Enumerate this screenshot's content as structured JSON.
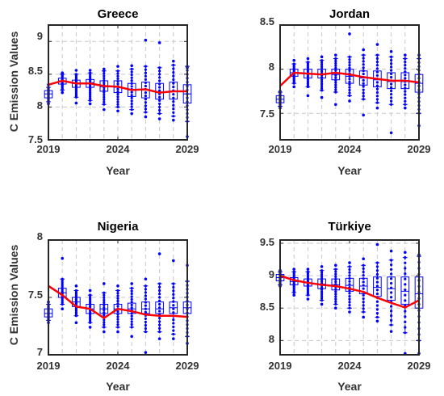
{
  "colors": {
    "frame": "#262626",
    "grid": "#c8c8c8",
    "box": "#0000ff",
    "outlier": "#0000ff",
    "mean_line": "#ff0000",
    "text": "#333333"
  },
  "chart_data": [
    {
      "type": "box",
      "title": "Greece",
      "xlabel": "Year",
      "ylabel": "C Emission Values",
      "x": [
        2019,
        2020,
        2021,
        2022,
        2023,
        2024,
        2025,
        2026,
        2027,
        2028,
        2029
      ],
      "xlim": [
        2019,
        2029
      ],
      "ylim": [
        7.5,
        9.25
      ],
      "xticks": [
        2019,
        2024,
        2029
      ],
      "yticks": [
        7.5,
        8,
        8.5,
        9
      ],
      "xtick_labels": [
        "2019",
        "2024",
        "2029"
      ],
      "ytick_labels": [
        "7.5",
        "8",
        "8.5",
        "9"
      ],
      "grid": true,
      "boxes": [
        {
          "q1": 8.14,
          "median": 8.2,
          "q3": 8.25,
          "whisker_low": 8.08,
          "whisker_high": 8.3,
          "outlier_low": 8.05,
          "outlier_high": 8.34
        },
        {
          "q1": 8.35,
          "median": 8.4,
          "q3": 8.44,
          "whisker_low": 8.26,
          "whisker_high": 8.5,
          "outlier_low": 8.22,
          "outlier_high": 8.52
        },
        {
          "q1": 8.3,
          "median": 8.36,
          "q3": 8.41,
          "whisker_low": 8.15,
          "whisker_high": 8.5,
          "outlier_low": 8.06,
          "outlier_high": 8.56
        },
        {
          "q1": 8.3,
          "median": 8.37,
          "q3": 8.42,
          "whisker_low": 8.1,
          "whisker_high": 8.52,
          "outlier_low": 8.05,
          "outlier_high": 8.56
        },
        {
          "q1": 8.24,
          "median": 8.31,
          "q3": 8.4,
          "whisker_low": 8.04,
          "whisker_high": 8.55,
          "outlier_low": 7.96,
          "outlier_high": 8.58
        },
        {
          "q1": 8.22,
          "median": 8.3,
          "q3": 8.4,
          "whisker_low": 8.0,
          "whisker_high": 8.55,
          "outlier_low": 7.94,
          "outlier_high": 8.62
        },
        {
          "q1": 8.16,
          "median": 8.26,
          "q3": 8.36,
          "whisker_low": 7.96,
          "whisker_high": 8.58,
          "outlier_low": 7.9,
          "outlier_high": 8.63
        },
        {
          "q1": 8.14,
          "median": 8.26,
          "q3": 8.38,
          "whisker_low": 7.92,
          "whisker_high": 8.62,
          "outlier_low": 7.85,
          "outlier_high": 9.02
        },
        {
          "q1": 8.12,
          "median": 8.22,
          "q3": 8.36,
          "whisker_low": 7.9,
          "whisker_high": 8.6,
          "outlier_low": 7.82,
          "outlier_high": 8.98
        },
        {
          "q1": 8.12,
          "median": 8.24,
          "q3": 8.38,
          "whisker_low": 7.86,
          "whisker_high": 8.64,
          "outlier_low": 7.8,
          "outlier_high": 8.7
        },
        {
          "q1": 8.06,
          "median": 8.2,
          "q3": 8.34,
          "whisker_low": 7.78,
          "whisker_high": 8.62,
          "outlier_low": 7.55,
          "outlier_high": 8.6
        }
      ],
      "mean_line": [
        8.34,
        8.4,
        8.36,
        8.36,
        8.32,
        8.31,
        8.26,
        8.27,
        8.22,
        8.24,
        8.24
      ]
    },
    {
      "type": "box",
      "title": "Jordan",
      "xlabel": "Year",
      "ylabel": "",
      "x": [
        2019,
        2020,
        2021,
        2022,
        2023,
        2024,
        2025,
        2026,
        2027,
        2028,
        2029
      ],
      "xlim": [
        2019,
        2029
      ],
      "ylim": [
        7.2,
        8.5
      ],
      "xticks": [
        2019,
        2024,
        2029
      ],
      "yticks": [
        7.5,
        8,
        8.5
      ],
      "xtick_labels": [
        "2019",
        "2024",
        "2029"
      ],
      "ytick_labels": [
        "7.5",
        "8",
        "8.5"
      ],
      "grid": true,
      "boxes": [
        {
          "q1": 7.62,
          "median": 7.66,
          "q3": 7.7,
          "whisker_low": 7.58,
          "whisker_high": 7.74,
          "outlier_low": 7.56,
          "outlier_high": 7.75
        },
        {
          "q1": 7.92,
          "median": 7.96,
          "q3": 8.0,
          "whisker_low": 7.84,
          "whisker_high": 8.06,
          "outlier_low": 7.8,
          "outlier_high": 8.1
        },
        {
          "q1": 7.9,
          "median": 7.95,
          "q3": 8.0,
          "whisker_low": 7.8,
          "whisker_high": 8.08,
          "outlier_low": 7.7,
          "outlier_high": 8.12
        },
        {
          "q1": 7.9,
          "median": 7.94,
          "q3": 8.0,
          "whisker_low": 7.76,
          "whisker_high": 8.1,
          "outlier_low": 7.68,
          "outlier_high": 8.14
        },
        {
          "q1": 7.88,
          "median": 7.94,
          "q3": 8.0,
          "whisker_low": 7.74,
          "whisker_high": 8.12,
          "outlier_low": 7.6,
          "outlier_high": 8.16
        },
        {
          "q1": 7.84,
          "median": 7.92,
          "q3": 8.0,
          "whisker_low": 7.7,
          "whisker_high": 8.14,
          "outlier_low": 7.64,
          "outlier_high": 8.4
        },
        {
          "q1": 7.82,
          "median": 7.9,
          "q3": 7.98,
          "whisker_low": 7.66,
          "whisker_high": 8.16,
          "outlier_low": 7.48,
          "outlier_high": 8.22
        },
        {
          "q1": 7.8,
          "median": 7.88,
          "q3": 7.98,
          "whisker_low": 7.62,
          "whisker_high": 8.16,
          "outlier_low": 7.56,
          "outlier_high": 8.28
        },
        {
          "q1": 7.78,
          "median": 7.86,
          "q3": 7.96,
          "whisker_low": 7.6,
          "whisker_high": 8.14,
          "outlier_low": 7.28,
          "outlier_high": 8.2
        },
        {
          "q1": 7.78,
          "median": 7.86,
          "q3": 7.96,
          "whisker_low": 7.6,
          "whisker_high": 8.12,
          "outlier_low": 7.56,
          "outlier_high": 8.16
        },
        {
          "q1": 7.74,
          "median": 7.84,
          "q3": 7.94,
          "whisker_low": 7.5,
          "whisker_high": 8.12,
          "outlier_low": 7.36,
          "outlier_high": 8.16
        }
      ],
      "mean_line": [
        7.81,
        7.96,
        7.95,
        7.94,
        7.96,
        7.94,
        7.91,
        7.89,
        7.87,
        7.87,
        7.85
      ]
    },
    {
      "type": "box",
      "title": "Nigeria",
      "xlabel": "Year",
      "ylabel": "C Emission Values",
      "x": [
        2019,
        2020,
        2021,
        2022,
        2023,
        2024,
        2025,
        2026,
        2027,
        2028,
        2029
      ],
      "xlim": [
        2019,
        2029
      ],
      "ylim": [
        7.0,
        8.0
      ],
      "xticks": [
        2019,
        2024,
        2029
      ],
      "yticks": [
        7,
        7.5,
        8
      ],
      "xtick_labels": [
        "2019",
        "2024",
        "2029"
      ],
      "ytick_labels": [
        "7",
        "7.5",
        "8"
      ],
      "grid": true,
      "boxes": [
        {
          "q1": 7.33,
          "median": 7.36,
          "q3": 7.4,
          "whisker_low": 7.3,
          "whisker_high": 7.44,
          "outlier_low": 7.28,
          "outlier_high": 7.46
        },
        {
          "q1": 7.5,
          "median": 7.54,
          "q3": 7.58,
          "whisker_low": 7.44,
          "whisker_high": 7.66,
          "outlier_low": 7.4,
          "outlier_high": 7.84
        },
        {
          "q1": 7.42,
          "median": 7.46,
          "q3": 7.5,
          "whisker_low": 7.34,
          "whisker_high": 7.56,
          "outlier_low": 7.28,
          "outlier_high": 7.6
        },
        {
          "q1": 7.36,
          "median": 7.4,
          "q3": 7.44,
          "whisker_low": 7.28,
          "whisker_high": 7.52,
          "outlier_low": 7.24,
          "outlier_high": 7.56
        },
        {
          "q1": 7.36,
          "median": 7.4,
          "q3": 7.44,
          "whisker_low": 7.24,
          "whisker_high": 7.54,
          "outlier_low": 7.2,
          "outlier_high": 7.62
        },
        {
          "q1": 7.36,
          "median": 7.4,
          "q3": 7.44,
          "whisker_low": 7.24,
          "whisker_high": 7.56,
          "outlier_low": 7.2,
          "outlier_high": 7.6
        },
        {
          "q1": 7.36,
          "median": 7.4,
          "q3": 7.45,
          "whisker_low": 7.24,
          "whisker_high": 7.58,
          "outlier_low": 7.16,
          "outlier_high": 7.62
        },
        {
          "q1": 7.36,
          "median": 7.4,
          "q3": 7.46,
          "whisker_low": 7.2,
          "whisker_high": 7.6,
          "outlier_low": 7.02,
          "outlier_high": 7.66
        },
        {
          "q1": 7.36,
          "median": 7.4,
          "q3": 7.46,
          "whisker_low": 7.2,
          "whisker_high": 7.62,
          "outlier_low": 7.14,
          "outlier_high": 7.88
        },
        {
          "q1": 7.36,
          "median": 7.41,
          "q3": 7.46,
          "whisker_low": 7.18,
          "whisker_high": 7.62,
          "outlier_low": 7.14,
          "outlier_high": 7.82
        },
        {
          "q1": 7.36,
          "median": 7.41,
          "q3": 7.46,
          "whisker_low": 7.16,
          "whisker_high": 7.64,
          "outlier_low": 7.1,
          "outlier_high": 7.78
        }
      ],
      "mean_line": [
        7.6,
        7.52,
        7.42,
        7.4,
        7.32,
        7.4,
        7.38,
        7.35,
        7.34,
        7.34,
        7.33
      ]
    },
    {
      "type": "box",
      "title": "Türkiye",
      "xlabel": "Year",
      "ylabel": "",
      "x": [
        2019,
        2020,
        2021,
        2022,
        2023,
        2024,
        2025,
        2026,
        2027,
        2028,
        2029
      ],
      "xlim": [
        2019,
        2029
      ],
      "ylim": [
        7.78,
        9.55
      ],
      "xticks": [
        2019,
        2024,
        2029
      ],
      "yticks": [
        8,
        8.5,
        9,
        9.5
      ],
      "xtick_labels": [
        "2019",
        "2024",
        "2029"
      ],
      "ytick_labels": [
        "8",
        "8.5",
        "9",
        "9.5"
      ],
      "grid": true,
      "boxes": [
        {
          "q1": 8.92,
          "median": 8.97,
          "q3": 9.02,
          "whisker_low": 8.86,
          "whisker_high": 9.06,
          "outlier_low": 8.84,
          "outlier_high": 9.08
        },
        {
          "q1": 8.86,
          "median": 8.91,
          "q3": 8.97,
          "whisker_low": 8.74,
          "whisker_high": 9.06,
          "outlier_low": 8.7,
          "outlier_high": 9.1
        },
        {
          "q1": 8.84,
          "median": 8.89,
          "q3": 8.95,
          "whisker_low": 8.7,
          "whisker_high": 9.06,
          "outlier_low": 8.64,
          "outlier_high": 9.1
        },
        {
          "q1": 8.8,
          "median": 8.87,
          "q3": 8.95,
          "whisker_low": 8.62,
          "whisker_high": 9.08,
          "outlier_low": 8.56,
          "outlier_high": 9.14
        },
        {
          "q1": 8.78,
          "median": 8.86,
          "q3": 8.95,
          "whisker_low": 8.56,
          "whisker_high": 9.1,
          "outlier_low": 8.5,
          "outlier_high": 9.16
        },
        {
          "q1": 8.76,
          "median": 8.85,
          "q3": 8.96,
          "whisker_low": 8.5,
          "whisker_high": 9.14,
          "outlier_low": 8.44,
          "outlier_high": 9.2
        },
        {
          "q1": 8.72,
          "median": 8.84,
          "q3": 8.96,
          "whisker_low": 8.44,
          "whisker_high": 9.16,
          "outlier_low": 8.36,
          "outlier_high": 9.26
        },
        {
          "q1": 8.68,
          "median": 8.82,
          "q3": 8.98,
          "whisker_low": 8.36,
          "whisker_high": 9.2,
          "outlier_low": 8.3,
          "outlier_high": 9.48
        },
        {
          "q1": 8.62,
          "median": 8.8,
          "q3": 8.98,
          "whisker_low": 8.24,
          "whisker_high": 9.24,
          "outlier_low": 8.14,
          "outlier_high": 9.38
        },
        {
          "q1": 8.56,
          "median": 8.76,
          "q3": 8.98,
          "whisker_low": 8.12,
          "whisker_high": 9.28,
          "outlier_low": 7.8,
          "outlier_high": 9.36
        },
        {
          "q1": 8.5,
          "median": 8.72,
          "q3": 8.98,
          "whisker_low": 8.0,
          "whisker_high": 9.3,
          "outlier_low": 7.8,
          "outlier_high": 9.32
        }
      ],
      "mean_line": [
        9.0,
        8.93,
        8.89,
        8.86,
        8.84,
        8.8,
        8.75,
        8.66,
        8.58,
        8.51,
        8.62
      ]
    }
  ]
}
